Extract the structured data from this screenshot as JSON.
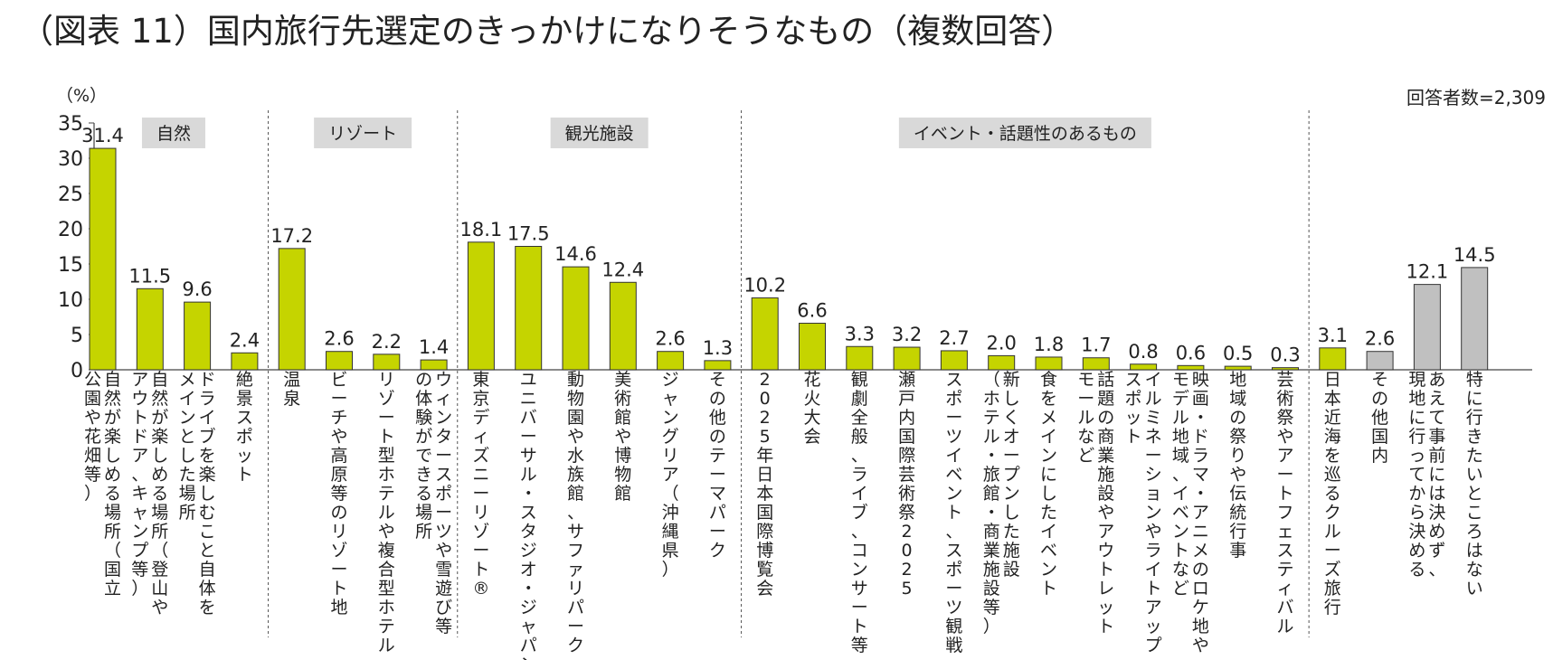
{
  "chart_data": {
    "type": "bar",
    "title": "（図表 11）国内旅行先選定のきっかけになりそうなもの（複数回答）",
    "ylabel": "（%）",
    "ylim": [
      0,
      35
    ],
    "yticks": [
      0,
      5,
      10,
      15,
      20,
      25,
      30,
      35
    ],
    "note": "回答者数=2,309",
    "colors": {
      "primary": "#c5d400",
      "secondary": "#c0c0c0",
      "group_label_bg": "#d9d9d9",
      "divider": "#555555"
    },
    "groups": [
      {
        "label": "自然",
        "start": 0,
        "end": 3
      },
      {
        "label": "リゾート",
        "start": 4,
        "end": 7
      },
      {
        "label": "観光施設",
        "start": 8,
        "end": 13
      },
      {
        "label": "イベント・話題性のあるもの",
        "start": 14,
        "end": 25
      }
    ],
    "categories": [
      [
        "自然が楽しめる場所（国立",
        "公園や花畑等）"
      ],
      [
        "自然が楽しめる場所（登山や",
        "アウトドア、キャンプ等）"
      ],
      [
        "ドライブを楽しむこと自体を",
        "メインとした場所"
      ],
      [
        "絶景スポット"
      ],
      [
        "温泉"
      ],
      [
        "ビーチや高原等のリゾート地"
      ],
      [
        "リゾート型ホテルや複合型ホテル"
      ],
      [
        "ウィンタースポーツや雪遊び等",
        "の体験ができる場所"
      ],
      [
        "東京ディズニーリゾート®"
      ],
      [
        "ユニバーサル・スタジオ・ジャパン"
      ],
      [
        "動物園や水族館、サファリパーク"
      ],
      [
        "美術館や博物館"
      ],
      [
        "ジャングリア（沖縄県）"
      ],
      [
        "その他のテーマパーク"
      ],
      [
        "2025年日本国際博覧会"
      ],
      [
        "花火大会"
      ],
      [
        "観劇全般、ライブ、コンサート等"
      ],
      [
        "瀬戸内国際芸術祭2025"
      ],
      [
        "スポーツイベント、スポーツ観戦"
      ],
      [
        "新しくオープンした施設",
        "（ホテル・旅館・商業施設等）"
      ],
      [
        "食をメインにしたイベント"
      ],
      [
        "話題の商業施設やアウトレット",
        "モールなど"
      ],
      [
        "イルミネーションやライトアップ",
        "スポット"
      ],
      [
        "映画・ドラマ・アニメのロケ地や",
        "モデル地域、イベントなど"
      ],
      [
        "地域の祭りや伝統行事"
      ],
      [
        "芸術祭やアートフェスティバル"
      ],
      [
        "日本近海を巡るクルーズ旅行"
      ],
      [
        "その他国内"
      ],
      [
        "あえて事前には決めず、",
        "現地に行ってから決める"
      ],
      [
        "特に行きたいところはない"
      ]
    ],
    "values": [
      31.4,
      11.5,
      9.6,
      2.4,
      17.2,
      2.6,
      2.2,
      1.4,
      18.1,
      17.5,
      14.6,
      12.4,
      2.6,
      1.3,
      10.2,
      6.6,
      3.3,
      3.2,
      2.7,
      2.0,
      1.8,
      1.7,
      0.8,
      0.6,
      0.5,
      0.3,
      3.1,
      2.6,
      12.1,
      14.5
    ],
    "value_labels": [
      "31.4",
      "11.5",
      "9.6",
      "2.4",
      "17.2",
      "2.6",
      "2.2",
      "1.4",
      "18.1",
      "17.5",
      "14.6",
      "12.4",
      "2.6",
      "1.3",
      "10.2",
      "6.6",
      "3.3",
      "3.2",
      "2.7",
      "2.0",
      "1.8",
      "1.7",
      "0.8",
      "0.6",
      "0.5",
      "0.3",
      "3.1",
      "2.6",
      "12.1",
      "14.5"
    ],
    "bar_color_keys": [
      "primary",
      "primary",
      "primary",
      "primary",
      "primary",
      "primary",
      "primary",
      "primary",
      "primary",
      "primary",
      "primary",
      "primary",
      "primary",
      "primary",
      "primary",
      "primary",
      "primary",
      "primary",
      "primary",
      "primary",
      "primary",
      "primary",
      "primary",
      "primary",
      "primary",
      "primary",
      "primary",
      "secondary",
      "secondary",
      "secondary"
    ]
  }
}
